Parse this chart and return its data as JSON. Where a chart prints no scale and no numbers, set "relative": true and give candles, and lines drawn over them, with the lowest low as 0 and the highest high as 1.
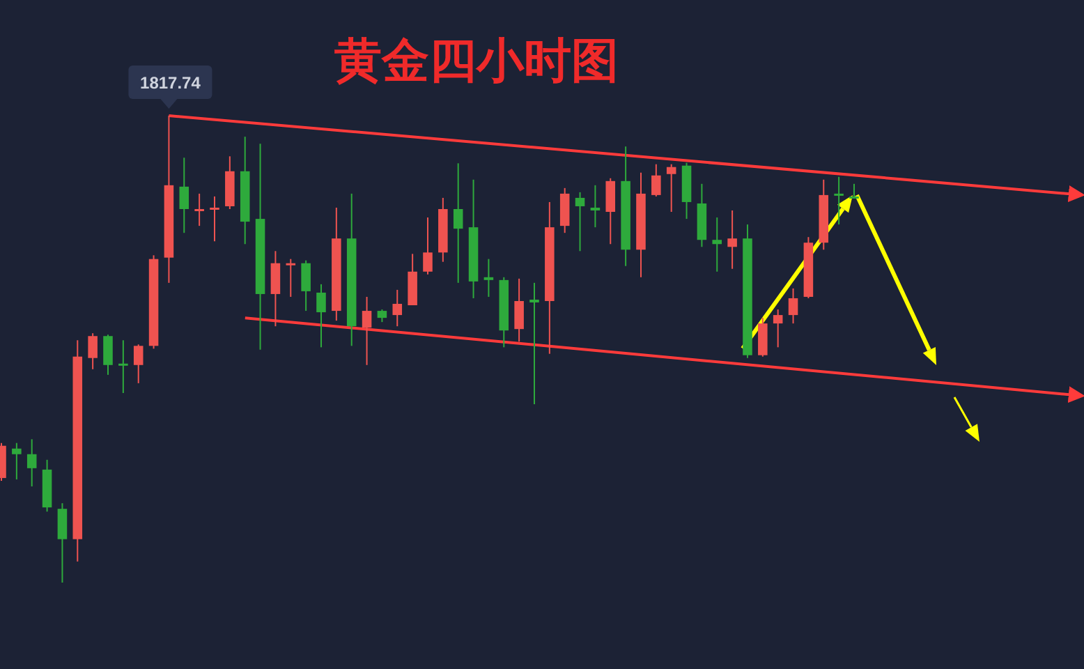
{
  "chart_data": {
    "type": "candlestick",
    "title": "黄金四小时图",
    "relative": true,
    "grid": false,
    "categories": [
      null,
      null,
      null,
      null,
      null,
      null,
      null,
      null,
      null,
      null,
      null,
      null,
      null,
      null,
      null,
      null,
      null,
      null,
      null,
      null,
      null,
      null,
      null,
      null,
      null,
      null,
      null,
      null,
      null,
      null,
      null,
      null,
      null,
      null,
      null,
      null,
      null,
      null,
      null,
      null,
      null,
      null,
      null,
      null,
      null,
      null,
      null,
      null,
      null,
      null,
      null,
      null,
      null,
      null,
      null,
      null,
      null,
      null,
      null,
      null,
      null,
      null,
      null,
      null,
      null,
      null,
      null,
      null,
      null,
      null,
      null,
      null
    ],
    "ohlc": [
      [
        0.224,
        0.299,
        0.218,
        0.293
      ],
      [
        0.287,
        0.299,
        0.221,
        0.275
      ],
      [
        0.275,
        0.307,
        0.206,
        0.245
      ],
      [
        0.242,
        0.263,
        0.152,
        0.161
      ],
      [
        0.158,
        0.17,
        0,
        0.093
      ],
      [
        0.093,
        0.519,
        0.045,
        0.484
      ],
      [
        0.481,
        0.534,
        0.457,
        0.528
      ],
      [
        0.528,
        0.531,
        0.445,
        0.466
      ],
      [
        0.469,
        0.519,
        0.406,
        0.466
      ],
      [
        0.466,
        0.51,
        0.427,
        0.507
      ],
      [
        0.507,
        0.701,
        0.501,
        0.693
      ],
      [
        0.696,
        1,
        0.642,
        0.851
      ],
      [
        0.848,
        0.91,
        0.749,
        0.8
      ],
      [
        0.797,
        0.833,
        0.764,
        0.8
      ],
      [
        0.8,
        0.827,
        0.731,
        0.803
      ],
      [
        0.806,
        0.913,
        0.8,
        0.881
      ],
      [
        0.881,
        0.955,
        0.725,
        0.773
      ],
      [
        0.779,
        0.94,
        0.499,
        0.618
      ],
      [
        0.618,
        0.71,
        0.549,
        0.684
      ],
      [
        0.681,
        0.693,
        0.612,
        0.684
      ],
      [
        0.684,
        0.69,
        0.582,
        0.624
      ],
      [
        0.621,
        0.639,
        0.504,
        0.579
      ],
      [
        0.582,
        0.803,
        0.561,
        0.737
      ],
      [
        0.737,
        0.833,
        0.507,
        0.549
      ],
      [
        0.546,
        0.612,
        0.466,
        0.582
      ],
      [
        0.582,
        0.585,
        0.558,
        0.567
      ],
      [
        0.573,
        0.627,
        0.549,
        0.597
      ],
      [
        0.594,
        0.704,
        0.594,
        0.666
      ],
      [
        0.666,
        0.782,
        0.66,
        0.707
      ],
      [
        0.707,
        0.824,
        0.687,
        0.8
      ],
      [
        0.8,
        0.898,
        0.642,
        0.758
      ],
      [
        0.761,
        0.863,
        0.609,
        0.645
      ],
      [
        0.654,
        0.693,
        0.612,
        0.648
      ],
      [
        0.648,
        0.654,
        0.504,
        0.54
      ],
      [
        0.543,
        0.651,
        0.516,
        0.603
      ],
      [
        0.606,
        0.642,
        0.382,
        0.6
      ],
      [
        0.603,
        0.815,
        0.49,
        0.761
      ],
      [
        0.764,
        0.845,
        0.749,
        0.833
      ],
      [
        0.824,
        0.836,
        0.71,
        0.806
      ],
      [
        0.803,
        0.851,
        0.761,
        0.797
      ],
      [
        0.794,
        0.866,
        0.725,
        0.86
      ],
      [
        0.86,
        0.934,
        0.678,
        0.713
      ],
      [
        0.713,
        0.878,
        0.654,
        0.833
      ],
      [
        0.83,
        0.896,
        0.827,
        0.872
      ],
      [
        0.875,
        0.896,
        0.794,
        0.89
      ],
      [
        0.893,
        0.899,
        0.779,
        0.815
      ],
      [
        0.812,
        0.854,
        0.719,
        0.734
      ],
      [
        0.734,
        0.782,
        0.666,
        0.725
      ],
      [
        0.719,
        0.797,
        0.672,
        0.737
      ],
      [
        0.737,
        0.767,
        0.481,
        0.487
      ],
      [
        0.487,
        0.567,
        0.484,
        0.555
      ],
      [
        0.555,
        0.585,
        0.504,
        0.573
      ],
      [
        0.573,
        0.63,
        0.555,
        0.609
      ],
      [
        0.612,
        0.74,
        0.609,
        0.728
      ],
      [
        0.728,
        0.863,
        0.713,
        0.83
      ],
      [
        0.833,
        0.869,
        0.767,
        0.83
      ],
      [
        0.827,
        0.854,
        0.824,
        0.824
      ],
      null,
      null,
      null,
      null,
      null,
      null,
      null,
      null,
      null,
      null,
      null,
      null,
      null,
      null,
      null
    ],
    "colors": [
      "#ef5350",
      "#2eaa3c",
      "#2eaa3c",
      "#2eaa3c",
      "#2eaa3c",
      "#ef5350",
      "#ef5350",
      "#2eaa3c",
      "#2eaa3c",
      "#ef5350",
      "#ef5350",
      "#ef5350",
      "#2eaa3c",
      "#ef5350",
      "#ef5350",
      "#ef5350",
      "#2eaa3c",
      "#2eaa3c",
      "#ef5350",
      "#ef5350",
      "#2eaa3c",
      "#2eaa3c",
      "#ef5350",
      "#2eaa3c",
      "#ef5350",
      "#2eaa3c",
      "#ef5350",
      "#ef5350",
      "#ef5350",
      "#ef5350",
      "#2eaa3c",
      "#2eaa3c",
      "#2eaa3c",
      "#2eaa3c",
      "#ef5350",
      "#2eaa3c",
      "#ef5350",
      "#ef5350",
      "#2eaa3c",
      "#2eaa3c",
      "#ef5350",
      "#2eaa3c",
      "#ef5350",
      "#ef5350",
      "#ef5350",
      "#2eaa3c",
      "#2eaa3c",
      "#2eaa3c",
      "#ef5350",
      "#2eaa3c",
      "#ef5350",
      "#ef5350",
      "#ef5350",
      "#ef5350",
      "#ef5350",
      "#2eaa3c",
      "#2eaa3c",
      null,
      null,
      null,
      null,
      null,
      null,
      null,
      null,
      null,
      null,
      null,
      null,
      null,
      null,
      null
    ],
    "series": [
      {
        "type": "line",
        "color": "#ff3b3b",
        "values": [
          null,
          null,
          null,
          null,
          null,
          null,
          null,
          null,
          null,
          null,
          null,
          1,
          null,
          null,
          null,
          null,
          null,
          null,
          null,
          null,
          null,
          null,
          null,
          null,
          null,
          null,
          null,
          null,
          null,
          null,
          null,
          null,
          null,
          null,
          null,
          null,
          null,
          null,
          null,
          null,
          null,
          null,
          null,
          null,
          null,
          null,
          null,
          null,
          null,
          null,
          null,
          null,
          null,
          null,
          null,
          null,
          null,
          null,
          null,
          null,
          null,
          null,
          null,
          null,
          null,
          null,
          null,
          null,
          null,
          null,
          null,
          0.83
        ]
      },
      {
        "type": "line",
        "color": "#ff3b3b",
        "values": [
          null,
          null,
          null,
          null,
          null,
          null,
          null,
          null,
          null,
          null,
          null,
          null,
          null,
          null,
          null,
          null,
          0.567,
          null,
          null,
          null,
          null,
          null,
          null,
          null,
          null,
          null,
          null,
          null,
          null,
          null,
          null,
          null,
          null,
          null,
          null,
          null,
          null,
          null,
          null,
          null,
          null,
          null,
          null,
          null,
          null,
          null,
          null,
          null,
          null,
          null,
          null,
          null,
          null,
          null,
          null,
          null,
          null,
          null,
          null,
          null,
          null,
          null,
          null,
          null,
          null,
          null,
          null,
          null,
          null,
          null,
          null,
          0.4
        ]
      }
    ],
    "annotations": [
      {
        "text": "1817.74",
        "y": 1
      }
    ]
  }
}
